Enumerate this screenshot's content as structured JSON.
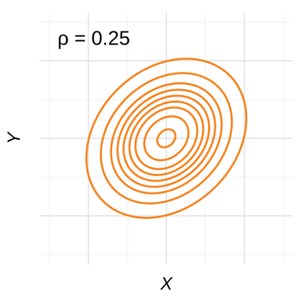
{
  "chart_data": {
    "type": "contour",
    "annotation": "ρ = 0.25",
    "xlabel": "X",
    "ylabel": "Y",
    "rho": 0.25,
    "levels": [
      0.02,
      0.04,
      0.06,
      0.075,
      0.09,
      0.105,
      0.12,
      0.14,
      0.16
    ],
    "color": "#f5841f",
    "xlim": [
      -3.25,
      3.25
    ],
    "ylim": [
      -3.25,
      3.25
    ],
    "xticks": [
      -2,
      0,
      2
    ],
    "yticks": [
      -2,
      0,
      2
    ],
    "xminor": [
      -3,
      -1,
      1,
      3
    ],
    "yminor": [
      -3,
      -1,
      1,
      3
    ],
    "grid": true
  }
}
